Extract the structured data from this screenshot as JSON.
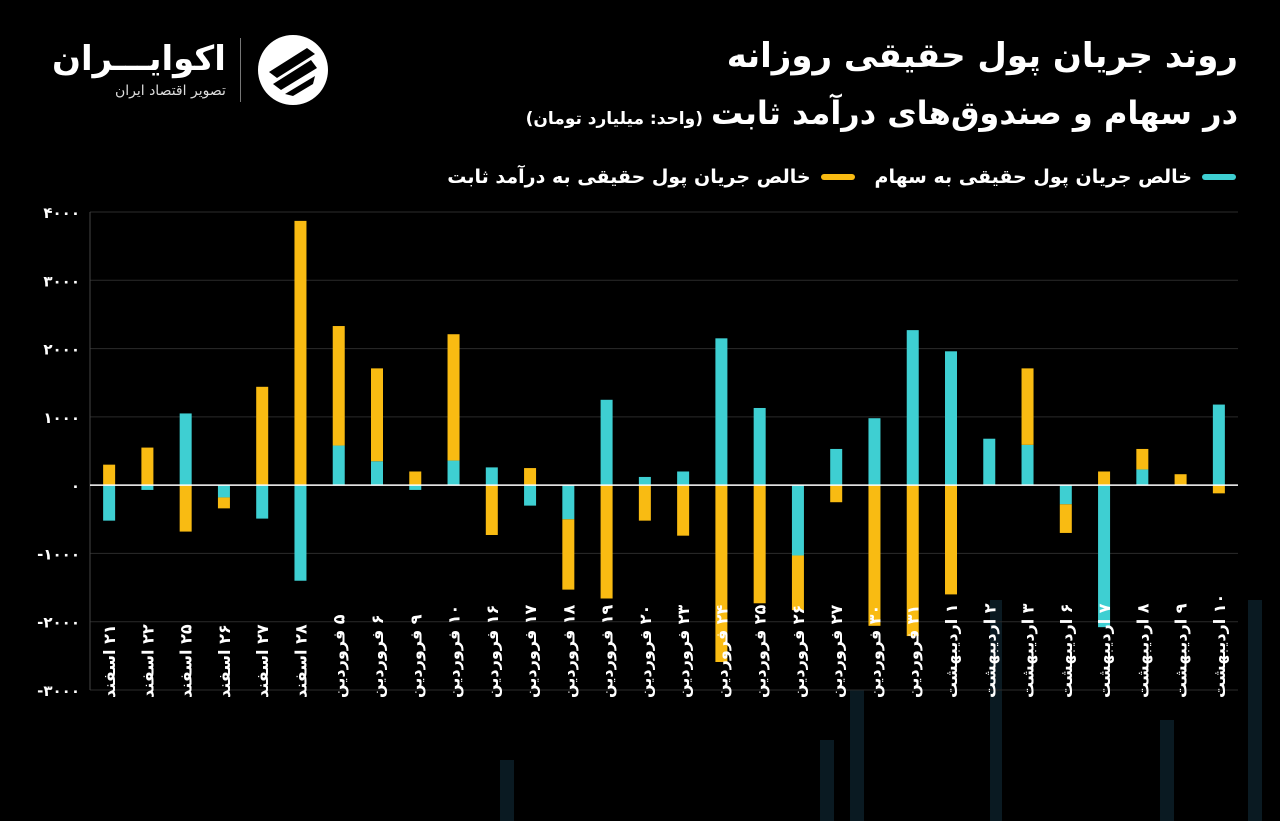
{
  "header": {
    "title_line1": "روند جریان پول حقیقی روزانه",
    "title_line2": "در سهام و صندوق‌های درآمد ثابت",
    "unit": "(واحد: میلیارد تومان)"
  },
  "logo": {
    "name": "اکوایـــران",
    "subtitle": "تصویر اقتصاد ایران"
  },
  "colors": {
    "background": "#000000",
    "stocks": "#3ecfd2",
    "fixed_income": "#f9bb12",
    "axis": "#ffffff"
  },
  "chart_data": {
    "type": "bar",
    "stacked": true,
    "title": "",
    "xlabel": "",
    "ylabel": "",
    "ylim": [
      -3000,
      4000
    ],
    "yticks": [
      4000,
      3000,
      2000,
      1000,
      0,
      -1000,
      -2000,
      -3000
    ],
    "ytick_labels": [
      "۴۰۰۰",
      "۳۰۰۰",
      "۲۰۰۰",
      "۱۰۰۰",
      "۰",
      "-۱۰۰۰",
      "-۲۰۰۰",
      "-۳۰۰۰"
    ],
    "grid": true,
    "legend_position": "top-right",
    "categories": [
      "۲۱ اسفند",
      "۲۲ اسفند",
      "۲۵ اسفند",
      "۲۶ اسفند",
      "۲۷ اسفند",
      "۲۸ اسفند",
      "۵ فروردین",
      "۶ فروردین",
      "۹ فروردین",
      "۱۰ فروردین",
      "۱۶ فروردین",
      "۱۷ فروردین",
      "۱۸ فروردین",
      "۱۹ فروردین",
      "۲۰ فروردین",
      "۲۳ فروردین",
      "۲۴ فروردین",
      "۲۵ فروردین",
      "۲۶ فروردین",
      "۲۷ فروردین",
      "۳۰ فروردین",
      "۳۱ فروردین",
      "۱ اردیبهشت",
      "۲ اردیبهشت",
      "۳ اردیبهشت",
      "۶ اردیبهشت",
      "۷ اردیبهشت",
      "۸ اردیبهشت",
      "۹ اردیبهشت",
      "۱۰ اردیبهشت"
    ],
    "series": [
      {
        "name": "خالص جریان پول حقیقی به سهام",
        "color": "#3ecfd2",
        "values": [
          -520,
          -70,
          1050,
          -180,
          -490,
          -1400,
          580,
          350,
          -70,
          360,
          260,
          -300,
          -500,
          1250,
          120,
          200,
          2150,
          1130,
          -1030,
          530,
          980,
          2270,
          1960,
          680,
          590,
          -280,
          -2080,
          230,
          0,
          1180
        ]
      },
      {
        "name": "خالص جریان پول حقیقی به درآمد ثابت",
        "color": "#f9bb12",
        "values": [
          300,
          550,
          -680,
          -160,
          1440,
          3870,
          1750,
          1360,
          200,
          1850,
          -730,
          250,
          -1030,
          -1660,
          -520,
          -740,
          -2590,
          -1730,
          -800,
          -250,
          -2060,
          -2210,
          -1600,
          0,
          1120,
          -420,
          200,
          300,
          160,
          -120
        ]
      }
    ]
  }
}
